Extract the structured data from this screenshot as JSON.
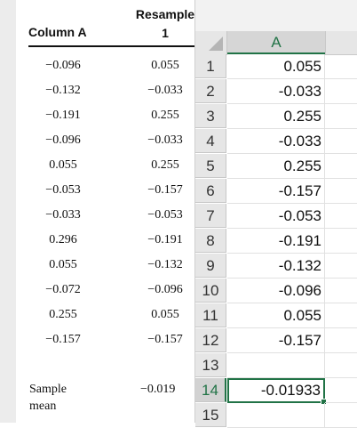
{
  "document": {
    "col_a_header": "Column A",
    "col_b_header_line1": "Resample",
    "col_b_header_line2": "1",
    "rows": [
      {
        "a": "−0.096",
        "b": "0.055"
      },
      {
        "a": "−0.132",
        "b": "−0.033"
      },
      {
        "a": "−0.191",
        "b": "0.255"
      },
      {
        "a": "−0.096",
        "b": "−0.033"
      },
      {
        "a": "0.055",
        "b": "0.255"
      },
      {
        "a": "−0.053",
        "b": "−0.157"
      },
      {
        "a": "−0.033",
        "b": "−0.053"
      },
      {
        "a": "0.296",
        "b": "−0.191"
      },
      {
        "a": "0.055",
        "b": "−0.132"
      },
      {
        "a": "−0.072",
        "b": "−0.096"
      },
      {
        "a": "0.255",
        "b": "0.055"
      },
      {
        "a": "−0.157",
        "b": "−0.157"
      }
    ],
    "sample_mean_line1": "Sample",
    "sample_mean_line2": "mean",
    "sample_mean_value": "−0.019"
  },
  "sheet": {
    "column_header": "A",
    "rows": [
      {
        "num": "1",
        "value": "0.055"
      },
      {
        "num": "2",
        "value": "-0.033"
      },
      {
        "num": "3",
        "value": "0.255"
      },
      {
        "num": "4",
        "value": "-0.033"
      },
      {
        "num": "5",
        "value": "0.255"
      },
      {
        "num": "6",
        "value": "-0.157"
      },
      {
        "num": "7",
        "value": "-0.053"
      },
      {
        "num": "8",
        "value": "-0.191"
      },
      {
        "num": "9",
        "value": "-0.132"
      },
      {
        "num": "10",
        "value": "-0.096"
      },
      {
        "num": "11",
        "value": "0.055"
      },
      {
        "num": "12",
        "value": "-0.157"
      },
      {
        "num": "13",
        "value": ""
      },
      {
        "num": "14",
        "value": "-0.01933"
      },
      {
        "num": "15",
        "value": ""
      }
    ],
    "active_row": "14"
  }
}
